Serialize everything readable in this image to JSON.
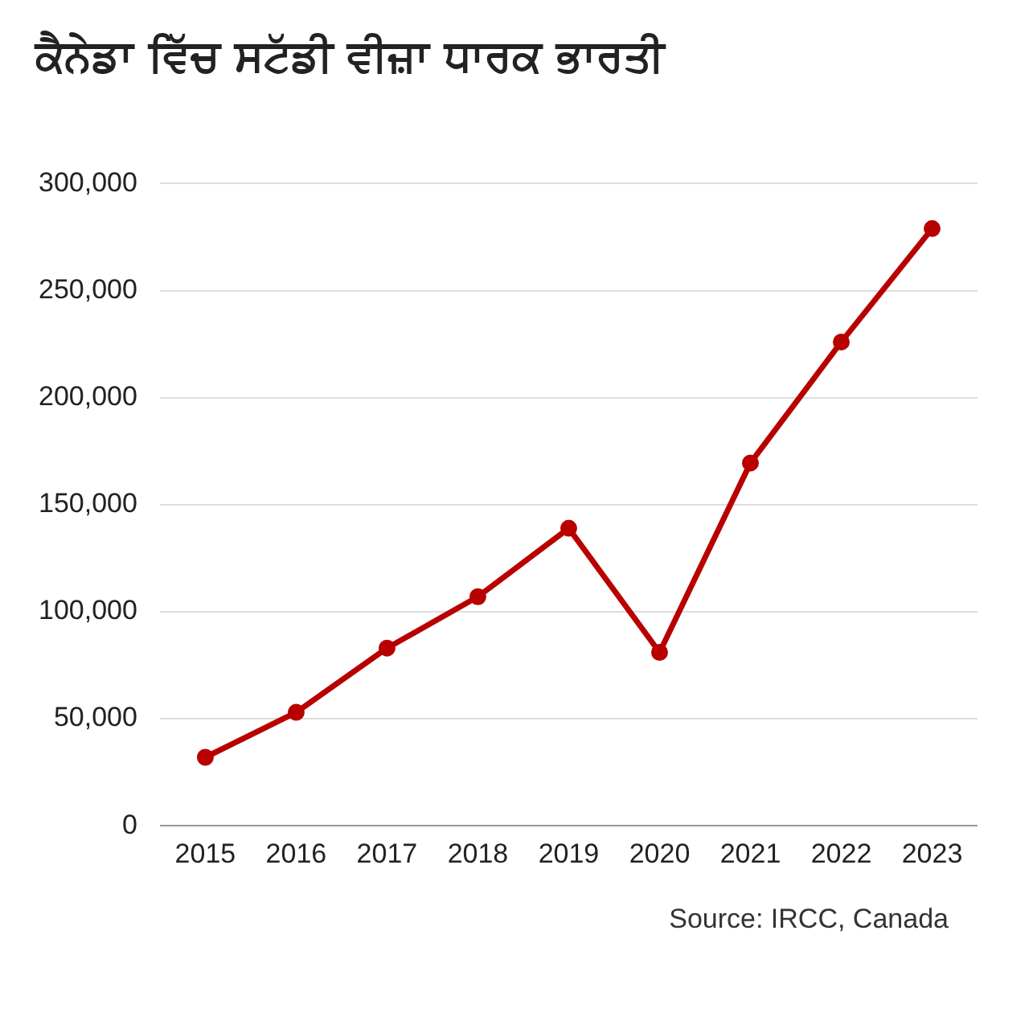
{
  "chart_data": {
    "type": "line",
    "title": "ਕੈਨੇਡਾ ਵਿੱਚ ਸਟੱਡੀ ਵੀਜ਼ਾ ਧਾਰਕ ਭਾਰਤੀ",
    "categories": [
      "2015",
      "2016",
      "2017",
      "2018",
      "2019",
      "2020",
      "2021",
      "2022",
      "2023"
    ],
    "series": [
      {
        "color": "#b80000",
        "values": [
          32000,
          53000,
          83000,
          107000,
          139000,
          81000,
          169500,
          226000,
          279000
        ]
      }
    ],
    "ylim": [
      0,
      300000
    ],
    "yticks": [
      {
        "value": 0,
        "label": "0"
      },
      {
        "value": 50000,
        "label": "50,000"
      },
      {
        "value": 100000,
        "label": "100,000"
      },
      {
        "value": 150000,
        "label": "150,000"
      },
      {
        "value": 200000,
        "label": "200,000"
      },
      {
        "value": 250000,
        "label": "250,000"
      },
      {
        "value": 300000,
        "label": "300,000"
      }
    ],
    "grid": "y",
    "marker": "circle",
    "line_style": "solid",
    "annotations": [
      "Source: IRCC, Canada"
    ]
  }
}
